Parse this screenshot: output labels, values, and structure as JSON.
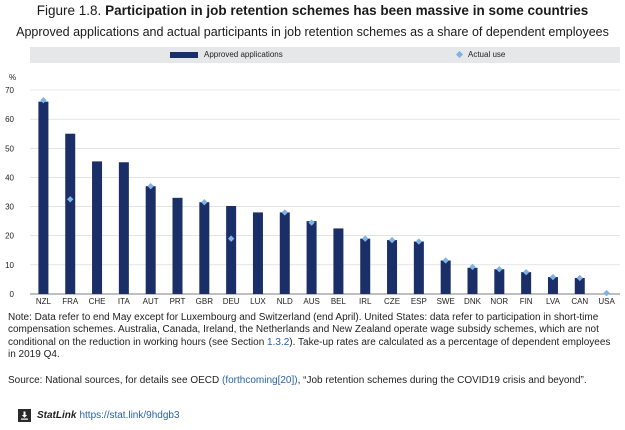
{
  "figure": {
    "number": "Figure 1.8.",
    "title": "Participation in job retention schemes has been massive in some countries",
    "subtitle": "Approved applications and actual participants in job retention schemes as a share of dependent employees"
  },
  "colors": {
    "bar": "#1a2e67",
    "marker": "#7fb2e5",
    "grid": "#d4d4d4",
    "legend_bg": "#e6e7e9"
  },
  "chart_data": {
    "type": "bar",
    "ylabel": "%",
    "ylim": [
      0,
      70
    ],
    "yticks": [
      "0",
      "10",
      "20",
      "30",
      "40",
      "50",
      "60",
      "70"
    ],
    "legend": {
      "bar": "Approved applications",
      "marker": "Actual use"
    },
    "categories": [
      "NZL",
      "FRA",
      "CHE",
      "ITA",
      "AUT",
      "PRT",
      "GBR",
      "DEU",
      "LUX",
      "NLD",
      "AUS",
      "BEL",
      "IRL",
      "CZE",
      "ESP",
      "SWE",
      "DNK",
      "NOR",
      "FIN",
      "LVA",
      "CAN",
      "USA"
    ],
    "series": [
      {
        "name": "Approved applications",
        "type": "bar",
        "values": [
          66,
          55,
          45.5,
          45.2,
          37,
          33,
          31.5,
          30.2,
          28,
          28,
          25,
          22.5,
          19,
          18.5,
          18,
          11.5,
          9,
          8.5,
          7.5,
          5.8,
          5.5,
          0
        ]
      },
      {
        "name": "Actual use",
        "type": "marker",
        "values": [
          66.5,
          32.5,
          null,
          null,
          37,
          null,
          31.5,
          19,
          null,
          28,
          24.5,
          null,
          19,
          18.5,
          18,
          11.5,
          9.3,
          8.5,
          7.5,
          5.8,
          5.5,
          0.3
        ]
      }
    ]
  },
  "note": "Note: Data refer to end May except for Luxembourg and Switzerland (end April). United States: data refer to participation in short-time compensation schemes. Australia, Canada, Ireland, the Netherlands and New Zealand operate wage subsidy schemes, which are not conditional on the reduction in working hours (see Section",
  "note_link": "1.3.2",
  "note_end": "). Take-up rates are calculated as a percentage of dependent employees in 2019 Q4.",
  "source_prefix": "Source: National sources, for details see OECD",
  "source_link": "(forthcoming[20])",
  "source_suffix": ", “Job retention schemes during the COVID19 crisis and beyond”.",
  "statlink_label": "StatLink",
  "statlink_url": "https://stat.link/9hdgb3",
  "icons": {
    "statlink": "download-icon"
  }
}
